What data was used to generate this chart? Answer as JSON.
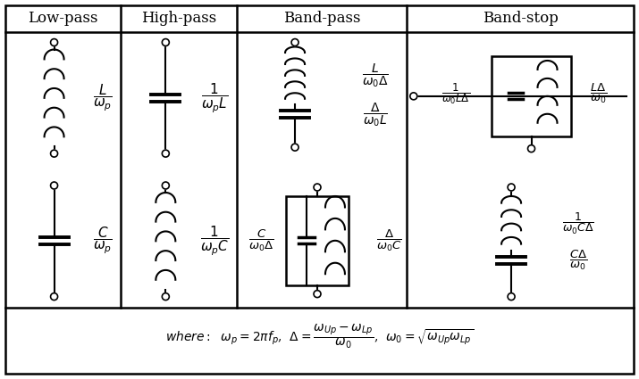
{
  "col_headers": [
    "Low-pass",
    "High-pass",
    "Band-pass",
    "Band-stop"
  ],
  "bg_color": "#ffffff",
  "text_color": "#000000",
  "header_fontsize": 12,
  "formula_fontsize": 10
}
